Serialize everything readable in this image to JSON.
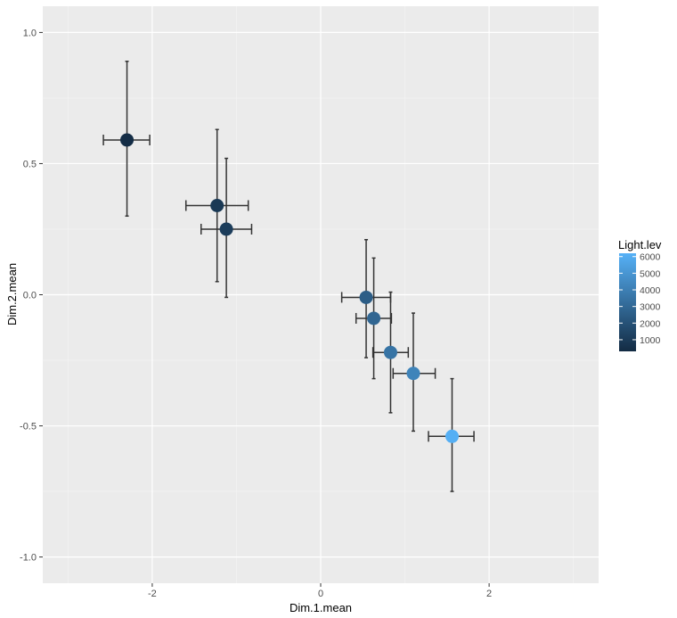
{
  "chart_data": {
    "type": "scatter",
    "title": "",
    "xlabel": "Dim.1.mean",
    "ylabel": "Dim.2.mean",
    "xlim": [
      -3.3,
      3.3
    ],
    "ylim": [
      -1.1,
      1.1
    ],
    "x_ticks": [
      -2,
      0,
      2
    ],
    "x_tick_labels": [
      "-2",
      "0",
      "2"
    ],
    "y_ticks": [
      -1.0,
      -0.5,
      0.0,
      0.5,
      1.0
    ],
    "y_tick_labels": [
      "-1.0",
      "-0.5",
      "0.0",
      "0.5",
      "1.0"
    ],
    "grid": true,
    "legend": {
      "title": "Light.lev",
      "placement": "right",
      "range": [
        300,
        6200
      ],
      "breaks": [
        1000,
        2000,
        3000,
        4000,
        5000,
        6000
      ],
      "break_labels": [
        "1000",
        "2000",
        "3000",
        "4000",
        "5000",
        "6000"
      ],
      "low_color": "#132B43",
      "high_color": "#56B1F7"
    },
    "points": [
      {
        "x": -2.3,
        "y": 0.59,
        "xmin": -2.58,
        "xmax": -2.03,
        "ymin": 0.3,
        "ymax": 0.89,
        "light": 400
      },
      {
        "x": -1.23,
        "y": 0.34,
        "xmin": -1.6,
        "xmax": -0.86,
        "ymin": 0.05,
        "ymax": 0.63,
        "light": 900
      },
      {
        "x": -1.12,
        "y": 0.25,
        "xmin": -1.42,
        "xmax": -0.82,
        "ymin": -0.01,
        "ymax": 0.52,
        "light": 1100
      },
      {
        "x": 0.54,
        "y": -0.01,
        "xmin": 0.25,
        "xmax": 0.83,
        "ymin": -0.24,
        "ymax": 0.21,
        "light": 2500
      },
      {
        "x": 0.63,
        "y": -0.09,
        "xmin": 0.42,
        "xmax": 0.84,
        "ymin": -0.32,
        "ymax": 0.14,
        "light": 2900
      },
      {
        "x": 0.83,
        "y": -0.22,
        "xmin": 0.62,
        "xmax": 1.04,
        "ymin": -0.45,
        "ymax": 0.01,
        "light": 3500
      },
      {
        "x": 1.1,
        "y": -0.3,
        "xmin": 0.86,
        "xmax": 1.36,
        "ymin": -0.52,
        "ymax": -0.07,
        "light": 4200
      },
      {
        "x": 1.56,
        "y": -0.54,
        "xmin": 1.28,
        "xmax": 1.82,
        "ymin": -0.75,
        "ymax": -0.32,
        "light": 6100
      }
    ]
  }
}
